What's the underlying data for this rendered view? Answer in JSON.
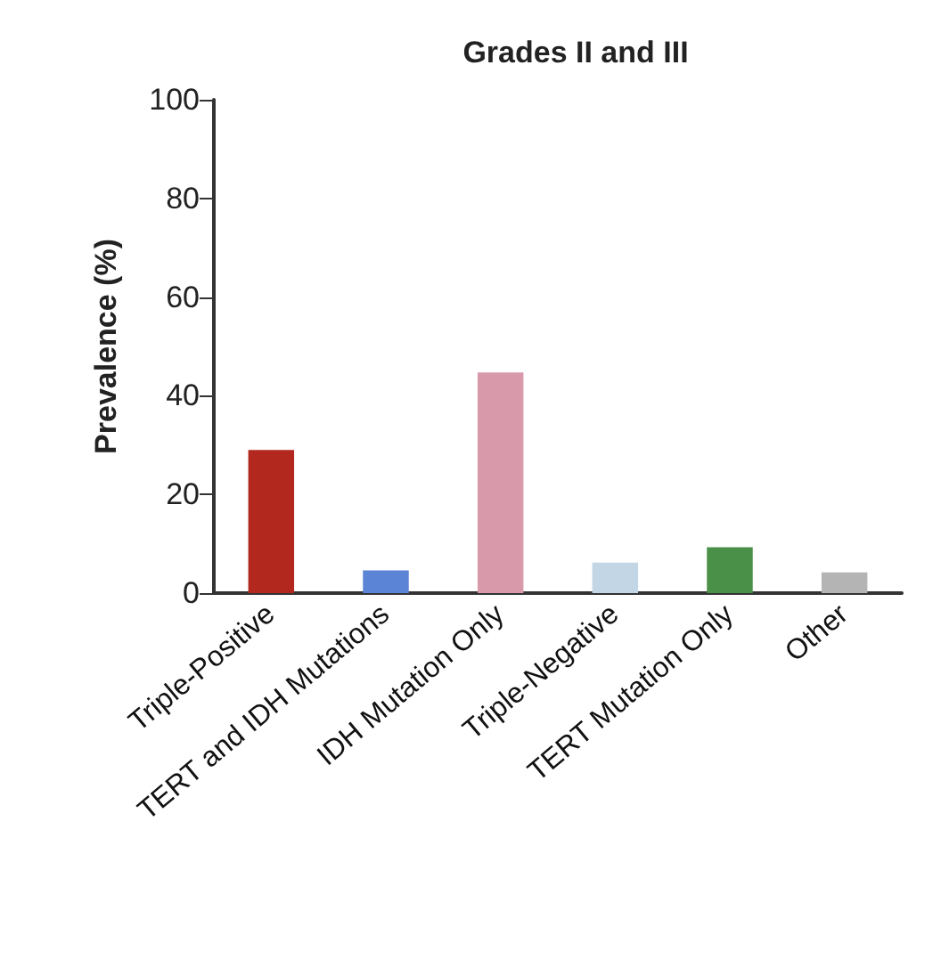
{
  "chart_data": {
    "type": "bar",
    "title": "Grades II and III",
    "ylabel": "Prevalence (%)",
    "categories": [
      "Triple-Positive",
      "TERT and IDH Mutations",
      "IDH Mutation Only",
      "Triple-Negative",
      "TERT Mutation Only",
      "Other"
    ],
    "values": [
      29,
      4.6,
      44.7,
      6.2,
      9.3,
      4.2
    ],
    "colors": [
      "#b3281e",
      "#5b84d6",
      "#d89aab",
      "#c3d6e6",
      "#4a9048",
      "#b4b4b4"
    ],
    "ylim": [
      0,
      100
    ],
    "yticks": [
      0,
      20,
      40,
      60,
      80,
      100
    ]
  }
}
